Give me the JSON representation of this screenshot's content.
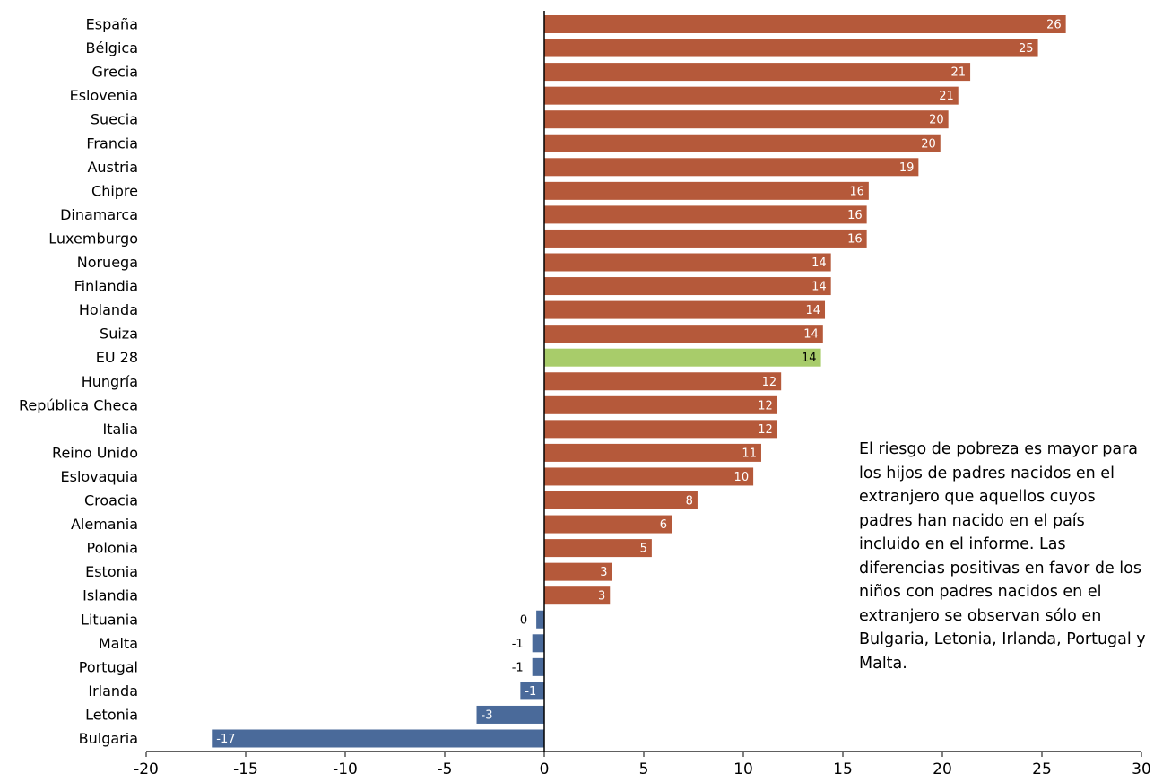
{
  "chart_data": {
    "type": "bar",
    "orientation": "horizontal",
    "categories": [
      "España",
      "Bélgica",
      "Grecia",
      "Eslovenia",
      "Suecia",
      "Francia",
      "Austria",
      "Chipre",
      "Dinamarca",
      "Luxemburgo",
      "Noruega",
      "Finlandia",
      "Holanda",
      "Suiza",
      "EU 28",
      "Hungría",
      "República Checa",
      "Italia",
      "Reino Unido",
      "Eslovaquia",
      "Croacia",
      "Alemania",
      "Polonia",
      "Estonia",
      "Islandia",
      "Lituania",
      "Malta",
      "Portugal",
      "Irlanda",
      "Letonia",
      "Bulgaria"
    ],
    "values": [
      26.2,
      24.8,
      21.4,
      20.8,
      20.3,
      19.9,
      18.8,
      16.3,
      16.2,
      16.2,
      14.4,
      14.4,
      14.1,
      14.0,
      13.9,
      11.9,
      11.7,
      11.7,
      10.9,
      10.5,
      7.7,
      6.4,
      5.4,
      3.4,
      3.3,
      -0.4,
      -0.6,
      -0.6,
      -1.2,
      -3.4,
      -16.7
    ],
    "value_labels": [
      "26",
      "25",
      "21",
      "21",
      "20",
      "20",
      "19",
      "16",
      "16",
      "16",
      "14",
      "14",
      "14",
      "14",
      "14",
      "12",
      "12",
      "12",
      "11",
      "10",
      "8",
      "6",
      "5",
      "3",
      "3",
      "0",
      "-1",
      "-1",
      "-1",
      "-3",
      "-17"
    ],
    "highlight_category": "EU 28",
    "xlim": [
      -20,
      30
    ],
    "xticks": [
      -20,
      -15,
      -10,
      -5,
      0,
      5,
      10,
      15,
      20,
      25,
      30
    ],
    "grid": false,
    "colors": {
      "positive": "#b5593a",
      "negative": "#4a6a9a",
      "highlight": "#a8cc6a",
      "label_on_bar": "#ffffff",
      "label_on_highlight": "#000000",
      "label_outside": "#000000"
    }
  },
  "note": "El riesgo de pobreza es mayor para los hijos de padres nacidos en el extranjero que aquellos cuyos padres han nacido en el país incluido en el informe. Las diferencias positivas en favor de los niños con padres nacidos en el extranjero se observan sólo en Bulgaria, Letonia, Irlanda, Portugal y Malta."
}
